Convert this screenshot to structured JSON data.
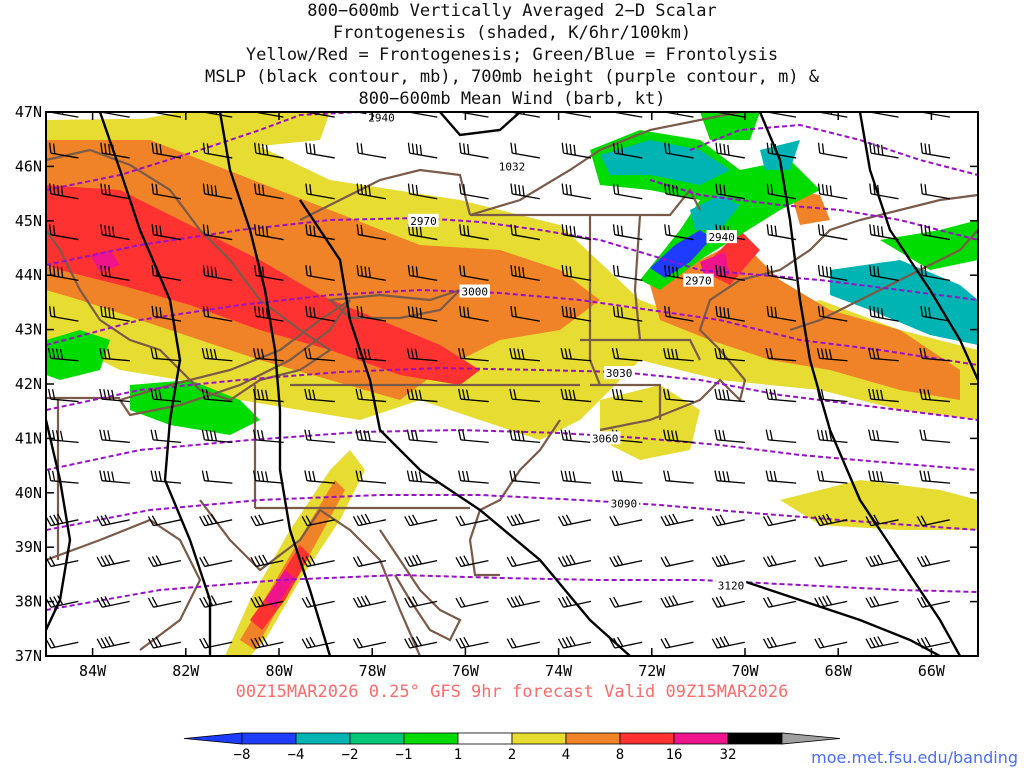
{
  "title_lines": [
    "800−600mb Vertically Averaged 2−D Scalar",
    "Frontogenesis (shaded, K/6hr/100km)",
    "Yellow/Red = Frontogenesis;  Green/Blue = Frontolysis",
    "MSLP (black contour, mb), 700mb height (purple contour, m) &",
    "800−600mb Mean Wind (barb, kt)"
  ],
  "map": {
    "lon_range": [
      -85,
      -65
    ],
    "lat_range": [
      37,
      47
    ],
    "lon_ticks": [
      "84W",
      "82W",
      "80W",
      "78W",
      "76W",
      "74W",
      "72W",
      "70W",
      "68W",
      "66W"
    ],
    "lon_tick_values": [
      -84,
      -82,
      -80,
      -78,
      -76,
      -74,
      -72,
      -70,
      -68,
      -66
    ],
    "lat_ticks": [
      "37N",
      "38N",
      "39N",
      "40N",
      "41N",
      "42N",
      "43N",
      "44N",
      "45N",
      "46N",
      "47N"
    ],
    "lat_tick_values": [
      37,
      38,
      39,
      40,
      41,
      42,
      43,
      44,
      45,
      46,
      47
    ],
    "height_contour_labels": [
      {
        "text": "2940",
        "lon": -77.8,
        "lat": 46.9
      },
      {
        "text": "2970",
        "lon": -76.9,
        "lat": 45.0
      },
      {
        "text": "3000",
        "lon": -75.8,
        "lat": 43.7
      },
      {
        "text": "3030",
        "lon": -72.7,
        "lat": 42.2
      },
      {
        "text": "3060",
        "lon": -73.0,
        "lat": 41.0
      },
      {
        "text": "3090",
        "lon": -72.6,
        "lat": 39.8
      },
      {
        "text": "3120",
        "lon": -70.3,
        "lat": 38.3
      },
      {
        "text": "2940",
        "lon": -70.5,
        "lat": 44.7
      },
      {
        "text": "2970",
        "lon": -71.0,
        "lat": 43.9
      }
    ],
    "mslp_contour_labels": [
      {
        "text": "1032",
        "lon": -75.0,
        "lat": 46.0
      }
    ],
    "colors": {
      "mslp": "#000000",
      "height": "#9a10c8",
      "borders": "#7a5a48",
      "barbs": "#000000"
    }
  },
  "colorbar": {
    "labels": [
      "−8",
      "−4",
      "−2",
      "−1",
      "1",
      "2",
      "4",
      "8",
      "16",
      "32"
    ],
    "colors": [
      "#1e3cff",
      "#00b4b4",
      "#00c878",
      "#00dc00",
      "#ffffff",
      "#e6dc32",
      "#f08228",
      "#ff3232",
      "#f0148c",
      "#000000"
    ],
    "low_cap_color": "#1e3cff",
    "high_cap_color": "#a0a0a0"
  },
  "footer": "00Z15MAR2026 0.25° GFS 9hr forecast Valid 09Z15MAR2026",
  "credit": "moe.met.fsu.edu/banding"
}
